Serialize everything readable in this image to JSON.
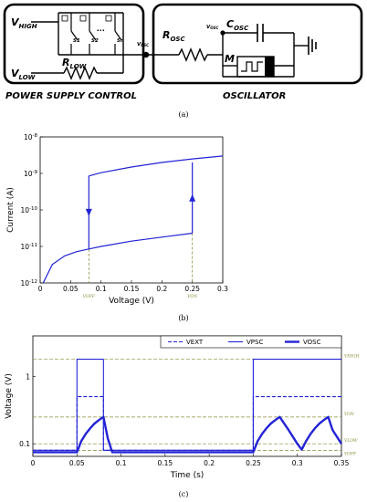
{
  "panel_a": {
    "caption": "(a)",
    "blocks": {
      "power_supply_title": "POWER SUPPLY CONTROL",
      "oscillator_title": "OSCILLATOR"
    },
    "labels": {
      "v_high": "V",
      "v_high_sub": "HIGH",
      "v_low": "V",
      "v_low_sub": "LOW",
      "r_low": "R",
      "r_low_sub": "LOW",
      "s1": "S1",
      "s2": "S2",
      "sn": "Sn",
      "dots": "...",
      "v_psc": "V",
      "v_psc_sub": "PSC",
      "r_osc": "R",
      "r_osc_sub": "OSC",
      "v_osc": "V",
      "v_osc_sub": "OSC",
      "c_osc": "C",
      "c_osc_sub": "OSC",
      "m": "M"
    }
  },
  "panel_b": {
    "caption": "(b)",
    "chart_data": {
      "type": "line",
      "xlabel": "Voltage (V)",
      "ylabel": "Current (A)",
      "xlim": [
        0,
        0.3
      ],
      "ylim": [
        1e-12,
        1e-08
      ],
      "yscale": "log",
      "x_ticks": [
        "0",
        "0.05",
        "0.1",
        "0.15",
        "0.2",
        "0.25",
        "0.3"
      ],
      "y_ticks": [
        "10-12",
        "10-11",
        "10-10",
        "10-9",
        "10-8"
      ],
      "threshold_labels": [
        "VOFF",
        "VON"
      ],
      "v_off": 0.08,
      "v_on": 0.25,
      "series": [
        {
          "x": [
            0.005,
            0.02,
            0.04,
            0.06,
            0.08,
            0.1,
            0.15,
            0.2,
            0.25
          ],
          "y": [
            1e-12,
            3.2e-12,
            5.5e-12,
            7.2e-12,
            8.5e-12,
            1e-11,
            1.4e-11,
            1.8e-11,
            2.3e-11
          ]
        },
        {
          "x": [
            0.08,
            0.1,
            0.15,
            0.2,
            0.25,
            0.3
          ],
          "y": [
            8.5e-10,
            1.05e-09,
            1.5e-09,
            2e-09,
            2.5e-09,
            3e-09
          ]
        }
      ],
      "transitions": [
        {
          "x": 0.08,
          "from": 8.5e-10,
          "to": 8.5e-12,
          "direction": "down"
        },
        {
          "x": 0.25,
          "from": 2.3e-11,
          "to": 2e-09,
          "direction": "up"
        }
      ]
    }
  },
  "panel_c": {
    "caption": "(c)",
    "chart_data": {
      "type": "line",
      "xlabel": "Time (s)",
      "ylabel": "Voltage (V)",
      "xlim": [
        0,
        0.35
      ],
      "ylim": [
        0.065,
        4
      ],
      "yscale": "log",
      "x_ticks": [
        "0",
        "0.05",
        "0.1",
        "0.15",
        "0.2",
        "0.25",
        "0.3",
        "0.35"
      ],
      "y_ticks": [
        "0.1",
        "1"
      ],
      "legend": [
        "VEXT",
        "VPSC",
        "VOSC"
      ],
      "legend_position": "top-right",
      "reference_labels": [
        "VHIGH",
        "VON",
        "VLOW",
        "VOFF"
      ],
      "reference_values": [
        1.8,
        0.25,
        0.1,
        0.08
      ],
      "series": [
        {
          "name": "VEXT",
          "x": [
            0,
            0.05,
            0.05,
            0.08,
            0.08,
            0.25,
            0.25,
            0.35
          ],
          "y": [
            0.08,
            0.08,
            0.5,
            0.5,
            0.08,
            0.08,
            0.5,
            0.5
          ]
        },
        {
          "name": "VPSC",
          "x": [
            0,
            0.05,
            0.05,
            0.08,
            0.08,
            0.25,
            0.25,
            0.35
          ],
          "y": [
            0.08,
            0.08,
            1.8,
            1.8,
            0.08,
            0.08,
            1.8,
            1.8
          ]
        },
        {
          "name": "VOSC",
          "x": [
            0,
            0.05,
            0.055,
            0.06,
            0.065,
            0.07,
            0.075,
            0.08,
            0.085,
            0.09,
            0.25,
            0.255,
            0.26,
            0.265,
            0.27,
            0.275,
            0.28,
            0.29,
            0.3,
            0.305,
            0.31,
            0.315,
            0.32,
            0.325,
            0.33,
            0.335,
            0.34,
            0.35
          ],
          "y": [
            0.075,
            0.075,
            0.11,
            0.14,
            0.17,
            0.2,
            0.225,
            0.25,
            0.12,
            0.075,
            0.075,
            0.11,
            0.14,
            0.17,
            0.2,
            0.225,
            0.25,
            0.16,
            0.1,
            0.082,
            0.11,
            0.14,
            0.17,
            0.2,
            0.225,
            0.25,
            0.16,
            0.1
          ]
        }
      ]
    }
  }
}
